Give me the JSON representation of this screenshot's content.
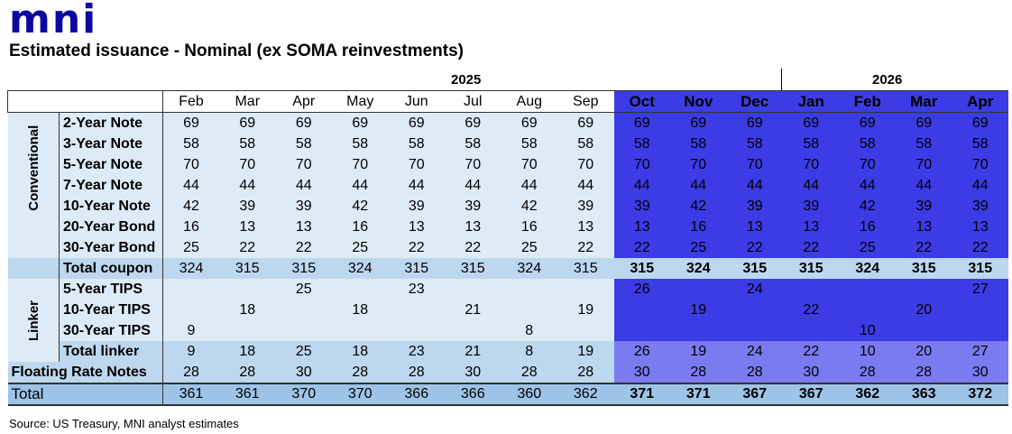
{
  "logo": "mni",
  "title": "Estimated issuance - Nominal (ex SOMA reinvestments)",
  "years": [
    "2025",
    "2026"
  ],
  "months": [
    "Feb",
    "Mar",
    "Apr",
    "May",
    "Jun",
    "Jul",
    "Aug",
    "Sep",
    "Oct",
    "Nov",
    "Dec",
    "Jan",
    "Feb",
    "Mar",
    "Apr"
  ],
  "forecast_start_index": 8,
  "colors": {
    "forecast": "#3c3ce6",
    "forecast_totals": "#7b7bf0",
    "history": "#ddebf7",
    "total_coupon": "#bdd7ee",
    "total": "#9dc3e6",
    "logo": "#0a0aa0"
  },
  "groups": {
    "conventional": "Conventional",
    "linker": "Linker"
  },
  "rows": [
    {
      "key": "c",
      "label": "2-Year Note",
      "values": [
        "69",
        "69",
        "69",
        "69",
        "69",
        "69",
        "69",
        "69",
        "69",
        "69",
        "69",
        "69",
        "69",
        "69",
        "69"
      ]
    },
    {
      "key": "c",
      "label": "3-Year Note",
      "values": [
        "58",
        "58",
        "58",
        "58",
        "58",
        "58",
        "58",
        "58",
        "58",
        "58",
        "58",
        "58",
        "58",
        "58",
        "58"
      ]
    },
    {
      "key": "c",
      "label": "5-Year Note",
      "values": [
        "70",
        "70",
        "70",
        "70",
        "70",
        "70",
        "70",
        "70",
        "70",
        "70",
        "70",
        "70",
        "70",
        "70",
        "70"
      ]
    },
    {
      "key": "c",
      "label": "7-Year Note",
      "values": [
        "44",
        "44",
        "44",
        "44",
        "44",
        "44",
        "44",
        "44",
        "44",
        "44",
        "44",
        "44",
        "44",
        "44",
        "44"
      ]
    },
    {
      "key": "c",
      "label": "10-Year Note",
      "values": [
        "42",
        "39",
        "39",
        "42",
        "39",
        "39",
        "42",
        "39",
        "39",
        "42",
        "39",
        "39",
        "42",
        "39",
        "39"
      ]
    },
    {
      "key": "c",
      "label": "20-Year Bond",
      "values": [
        "16",
        "13",
        "13",
        "16",
        "13",
        "13",
        "16",
        "13",
        "13",
        "16",
        "13",
        "13",
        "16",
        "13",
        "13"
      ]
    },
    {
      "key": "c",
      "label": "30-Year Bond",
      "values": [
        "25",
        "22",
        "22",
        "25",
        "22",
        "22",
        "25",
        "22",
        "22",
        "25",
        "22",
        "22",
        "25",
        "22",
        "22"
      ]
    },
    {
      "key": "tc",
      "label": "Total coupon",
      "values": [
        "324",
        "315",
        "315",
        "324",
        "315",
        "315",
        "324",
        "315",
        "315",
        "324",
        "315",
        "315",
        "324",
        "315",
        "315"
      ]
    },
    {
      "key": "l",
      "label": "5-Year TIPS",
      "values": [
        "",
        "",
        "25",
        "",
        "23",
        "",
        "",
        "",
        "26",
        "",
        "24",
        "",
        "",
        "",
        "27"
      ]
    },
    {
      "key": "l",
      "label": "10-Year TIPS",
      "values": [
        "",
        "18",
        "",
        "18",
        "",
        "21",
        "",
        "19",
        "",
        "19",
        "",
        "22",
        "",
        "20",
        ""
      ]
    },
    {
      "key": "l",
      "label": "30-Year TIPS",
      "values": [
        "9",
        "",
        "",
        "",
        "",
        "",
        "8",
        "",
        "",
        "",
        "",
        "",
        "10",
        "",
        ""
      ]
    },
    {
      "key": "tl",
      "label": "Total linker",
      "values": [
        "9",
        "18",
        "25",
        "18",
        "23",
        "21",
        "8",
        "19",
        "26",
        "19",
        "24",
        "22",
        "10",
        "20",
        "27"
      ]
    },
    {
      "key": "fr",
      "label": "Floating Rate Notes",
      "values": [
        "28",
        "28",
        "30",
        "28",
        "28",
        "30",
        "28",
        "28",
        "30",
        "28",
        "28",
        "30",
        "28",
        "28",
        "30"
      ]
    },
    {
      "key": "tot",
      "label": "Total",
      "values": [
        "361",
        "361",
        "370",
        "370",
        "366",
        "366",
        "360",
        "362",
        "371",
        "371",
        "367",
        "367",
        "362",
        "363",
        "372"
      ]
    }
  ],
  "source": "Source: US Treasury, MNI analyst estimates"
}
